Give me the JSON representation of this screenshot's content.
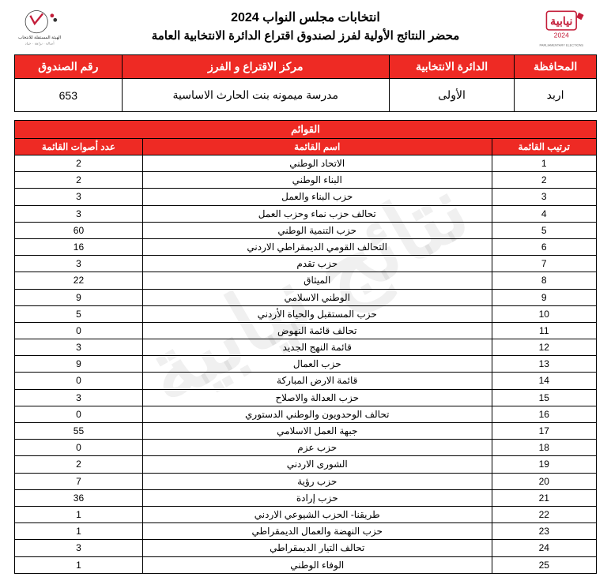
{
  "watermark_text": "نتائج نيابية",
  "header": {
    "title_line1": "انتخابات مجلس النواب 2024",
    "title_line2": "محضر النتائج الأولية لفرز لصندوق اقتراع الدائرة الانتخابية العامة"
  },
  "info_table": {
    "headers": {
      "governorate": "المحافظة",
      "district": "الدائرة الانتخابية",
      "center": "مركز الاقتراع و الفرز",
      "box": "رقم الصندوق"
    },
    "values": {
      "governorate": "اربد",
      "district": "الأولى",
      "center": "مدرسة ميمونه بنت الحارث الاساسية",
      "box": "653"
    }
  },
  "lists_table": {
    "title": "القوائم",
    "headers": {
      "rank": "ترتيب القائمة",
      "name": "اسم القائمة",
      "votes": "عدد أصوات القائمة"
    },
    "rows": [
      {
        "rank": "1",
        "name": "الاتحاد الوطني",
        "votes": "2"
      },
      {
        "rank": "2",
        "name": "البناء الوطني",
        "votes": "2"
      },
      {
        "rank": "3",
        "name": "حزب البناء والعمل",
        "votes": "3"
      },
      {
        "rank": "4",
        "name": "تحالف حزب نماء وحزب العمل",
        "votes": "3"
      },
      {
        "rank": "5",
        "name": "حزب التنمية الوطني",
        "votes": "60"
      },
      {
        "rank": "6",
        "name": "التحالف القومي الديمقراطي الاردني",
        "votes": "16"
      },
      {
        "rank": "7",
        "name": "حزب تقدم",
        "votes": "3"
      },
      {
        "rank": "8",
        "name": "الميثاق",
        "votes": "22"
      },
      {
        "rank": "9",
        "name": "الوطني الاسلامي",
        "votes": "9"
      },
      {
        "rank": "10",
        "name": "حزب المستقبل والحياة الأردني",
        "votes": "5"
      },
      {
        "rank": "11",
        "name": "تحالف قائمة النهوض",
        "votes": "0"
      },
      {
        "rank": "12",
        "name": "قائمة النهج الجديد",
        "votes": "3"
      },
      {
        "rank": "13",
        "name": "حزب العمال",
        "votes": "9"
      },
      {
        "rank": "14",
        "name": "قائمة الارض المباركة",
        "votes": "0"
      },
      {
        "rank": "15",
        "name": "حزب العدالة والاصلاح",
        "votes": "3"
      },
      {
        "rank": "16",
        "name": "تحالف الوحدويون والوطني الدستوري",
        "votes": "0"
      },
      {
        "rank": "17",
        "name": "جبهة العمل الاسلامي",
        "votes": "55"
      },
      {
        "rank": "18",
        "name": "حزب عزم",
        "votes": "0"
      },
      {
        "rank": "19",
        "name": "الشورى الاردني",
        "votes": "2"
      },
      {
        "rank": "20",
        "name": "حزب رؤية",
        "votes": "7"
      },
      {
        "rank": "21",
        "name": "حزب إرادة",
        "votes": "36"
      },
      {
        "rank": "22",
        "name": "طريقنا- الحزب الشيوعي الاردني",
        "votes": "1"
      },
      {
        "rank": "23",
        "name": "حزب النهضة والعمال الديمقراطي",
        "votes": "1"
      },
      {
        "rank": "24",
        "name": "تحالف التيار الديمقراطي",
        "votes": "3"
      },
      {
        "rank": "25",
        "name": "الوفاء الوطني",
        "votes": "1"
      }
    ]
  },
  "colors": {
    "header_bg": "#ee2a24",
    "header_fg": "#ffffff",
    "border": "#000000",
    "watermark": "rgba(0,0,0,0.06)"
  }
}
